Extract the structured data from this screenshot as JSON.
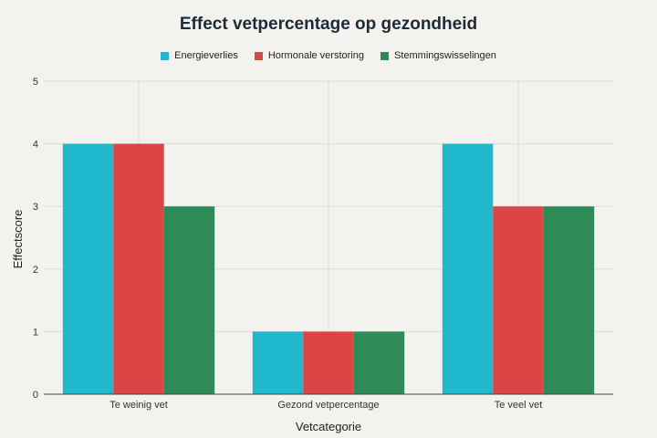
{
  "chart_data": {
    "type": "bar",
    "title": "Effect vetpercentage op gezondheid",
    "xlabel": "Vetcategorie",
    "ylabel": "Effectscore",
    "categories": [
      "Te weinig vet",
      "Gezond vetpercentage",
      "Te veel vet"
    ],
    "series": [
      {
        "name": "Energieverlies",
        "values": [
          4,
          1,
          4
        ],
        "color": "#1fb8cd"
      },
      {
        "name": "Hormonale verstoring",
        "values": [
          4,
          1,
          3
        ],
        "color": "#db4545"
      },
      {
        "name": "Stemmingswisselingen",
        "values": [
          3,
          1,
          3
        ],
        "color": "#2e8b57"
      }
    ],
    "ylim": [
      0,
      5
    ],
    "yticks": [
      0,
      1,
      2,
      3,
      4,
      5
    ],
    "grid": true,
    "legend_position": "top-center"
  }
}
